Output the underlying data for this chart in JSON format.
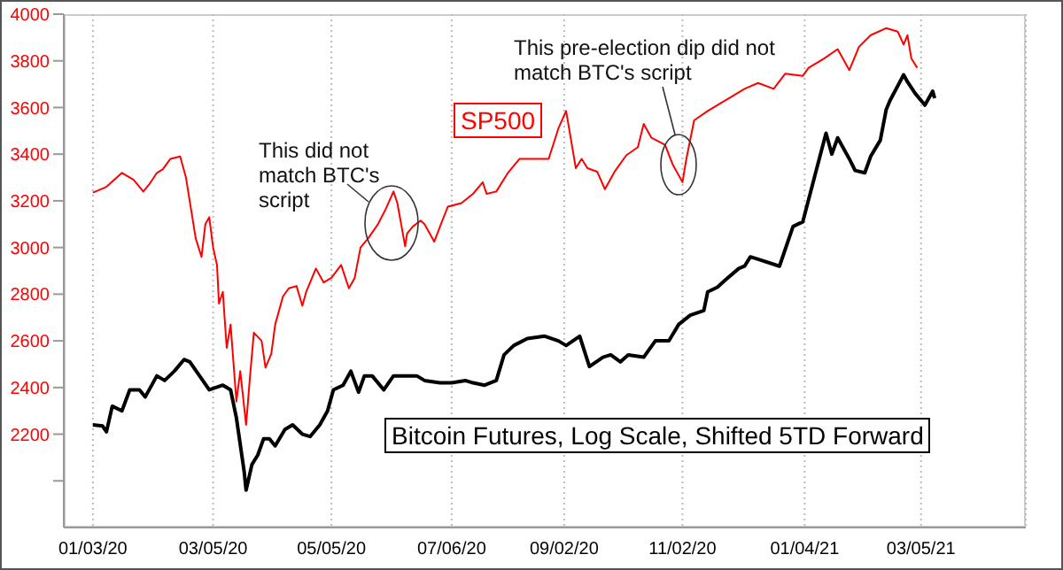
{
  "chart_data": {
    "type": "line",
    "xlim": [
      "2019-12-19",
      "2021-04-28"
    ],
    "xticks": [
      {
        "value": "2020-01-03",
        "label": "01/03/20"
      },
      {
        "value": "2020-03-05",
        "label": "03/05/20"
      },
      {
        "value": "2020-05-05",
        "label": "05/05/20"
      },
      {
        "value": "2020-07-06",
        "label": "07/06/20"
      },
      {
        "value": "2020-09-02",
        "label": "09/02/20"
      },
      {
        "value": "2020-11-02",
        "label": "11/02/20"
      },
      {
        "value": "2021-01-04",
        "label": "01/04/21"
      },
      {
        "value": "2021-03-05",
        "label": "03/05/21"
      }
    ],
    "ylim": [
      1800,
      4000
    ],
    "yticks": [
      {
        "value": 2000,
        "label": null
      },
      2200,
      2400,
      2600,
      2800,
      3000,
      3200,
      3400,
      3600,
      3800,
      4000
    ],
    "grid": "x",
    "annotations": [
      "This did not match BTC's script",
      "This pre-election dip did not match BTC's script"
    ],
    "series": [
      {
        "name": "SP500",
        "color": "#ff0000",
        "x": [
          "2020-01-03",
          "2020-01-10",
          "2020-01-18",
          "2020-01-24",
          "2020-01-29",
          "2020-02-01",
          "2020-02-05",
          "2020-02-08",
          "2020-02-12",
          "2020-02-17",
          "2020-02-20",
          "2020-02-25",
          "2020-02-28",
          "2020-03-01",
          "2020-03-03",
          "2020-03-05",
          "2020-03-07",
          "2020-03-08",
          "2020-03-10",
          "2020-03-12",
          "2020-03-14",
          "2020-03-17",
          "2020-03-19",
          "2020-03-22",
          "2020-03-24",
          "2020-03-26",
          "2020-03-30",
          "2020-04-01",
          "2020-04-04",
          "2020-04-06",
          "2020-04-10",
          "2020-04-13",
          "2020-04-17",
          "2020-04-20",
          "2020-04-22",
          "2020-04-27",
          "2020-05-01",
          "2020-05-05",
          "2020-05-10",
          "2020-05-14",
          "2020-05-17",
          "2020-05-20",
          "2020-05-24",
          "2020-05-29",
          "2020-06-02",
          "2020-06-06",
          "2020-06-08",
          "2020-06-12",
          "2020-06-13",
          "2020-06-16",
          "2020-06-20",
          "2020-06-22",
          "2020-06-27",
          "2020-06-30",
          "2020-07-04",
          "2020-07-11",
          "2020-07-17",
          "2020-07-22",
          "2020-07-24",
          "2020-07-29",
          "2020-08-04",
          "2020-08-10",
          "2020-08-16",
          "2020-08-25",
          "2020-08-30",
          "2020-09-03",
          "2020-09-08",
          "2020-09-11",
          "2020-09-14",
          "2020-09-19",
          "2020-09-23",
          "2020-09-28",
          "2020-10-04",
          "2020-10-10",
          "2020-10-13",
          "2020-10-17",
          "2020-10-24",
          "2020-10-28",
          "2020-11-02",
          "2020-11-04",
          "2020-11-08",
          "2020-11-15",
          "2020-11-22",
          "2020-11-27",
          "2020-12-04",
          "2020-12-11",
          "2020-12-19",
          "2020-12-25",
          "2021-01-03",
          "2021-01-06",
          "2021-01-14",
          "2021-01-21",
          "2021-01-27",
          "2021-02-01",
          "2021-02-07",
          "2021-02-15",
          "2021-02-21",
          "2021-02-24",
          "2021-02-26",
          "2021-02-28",
          "2021-03-03"
        ],
        "values": [
          3235,
          3260,
          3320,
          3290,
          3240,
          3270,
          3320,
          3335,
          3380,
          3390,
          3300,
          3040,
          2960,
          3100,
          3130,
          3000,
          2925,
          2760,
          2810,
          2570,
          2670,
          2340,
          2470,
          2240,
          2445,
          2635,
          2600,
          2485,
          2545,
          2670,
          2790,
          2825,
          2835,
          2750,
          2810,
          2910,
          2850,
          2870,
          2925,
          2825,
          2870,
          3000,
          3040,
          3100,
          3165,
          3240,
          3190,
          3005,
          3060,
          3090,
          3115,
          3100,
          3025,
          3090,
          3175,
          3190,
          3230,
          3280,
          3230,
          3240,
          3320,
          3380,
          3380,
          3380,
          3510,
          3585,
          3340,
          3380,
          3340,
          3325,
          3250,
          3325,
          3395,
          3430,
          3530,
          3470,
          3440,
          3355,
          3280,
          3380,
          3545,
          3585,
          3620,
          3645,
          3680,
          3705,
          3680,
          3745,
          3735,
          3770,
          3810,
          3850,
          3760,
          3860,
          3910,
          3940,
          3925,
          3870,
          3910,
          3810,
          3770
        ]
      },
      {
        "name": "Bitcoin Futures, Log Scale, Shifted 5TD Forward",
        "color": "#000000",
        "x": [
          "2020-01-03",
          "2020-01-08",
          "2020-01-10",
          "2020-01-13",
          "2020-01-18",
          "2020-01-22",
          "2020-01-27",
          "2020-01-30",
          "2020-02-05",
          "2020-02-09",
          "2020-02-14",
          "2020-02-19",
          "2020-02-22",
          "2020-02-27",
          "2020-03-03",
          "2020-03-10",
          "2020-03-14",
          "2020-03-17",
          "2020-03-21",
          "2020-03-22",
          "2020-03-25",
          "2020-03-28",
          "2020-03-31",
          "2020-04-03",
          "2020-04-06",
          "2020-04-11",
          "2020-04-15",
          "2020-04-20",
          "2020-04-24",
          "2020-04-29",
          "2020-05-03",
          "2020-05-06",
          "2020-05-11",
          "2020-05-15",
          "2020-05-19",
          "2020-05-22",
          "2020-05-26",
          "2020-06-01",
          "2020-06-06",
          "2020-06-12",
          "2020-06-18",
          "2020-06-22",
          "2020-06-30",
          "2020-07-06",
          "2020-07-13",
          "2020-07-17",
          "2020-07-23",
          "2020-07-29",
          "2020-08-02",
          "2020-08-07",
          "2020-08-14",
          "2020-08-23",
          "2020-08-30",
          "2020-09-03",
          "2020-09-10",
          "2020-09-15",
          "2020-09-22",
          "2020-09-26",
          "2020-10-01",
          "2020-10-05",
          "2020-10-13",
          "2020-10-19",
          "2020-10-26",
          "2020-10-31",
          "2020-11-06",
          "2020-11-13",
          "2020-11-15",
          "2020-11-20",
          "2020-11-24",
          "2020-12-01",
          "2020-12-04",
          "2020-12-07",
          "2020-12-11",
          "2020-12-22",
          "2020-12-29",
          "2021-01-03",
          "2021-01-09",
          "2021-01-15",
          "2021-01-18",
          "2021-01-21",
          "2021-01-27",
          "2021-01-30",
          "2021-02-04",
          "2021-02-07",
          "2021-02-12",
          "2021-02-15",
          "2021-02-17",
          "2021-02-24",
          "2021-02-26",
          "2021-03-02",
          "2021-03-07",
          "2021-03-11",
          "2021-03-12"
        ],
        "values": [
          2240,
          2235,
          2210,
          2320,
          2300,
          2390,
          2390,
          2360,
          2450,
          2430,
          2470,
          2520,
          2510,
          2450,
          2390,
          2410,
          2390,
          2270,
          2040,
          1960,
          2070,
          2110,
          2180,
          2180,
          2150,
          2220,
          2240,
          2200,
          2190,
          2240,
          2300,
          2390,
          2410,
          2470,
          2380,
          2450,
          2450,
          2390,
          2450,
          2450,
          2450,
          2430,
          2420,
          2420,
          2430,
          2420,
          2410,
          2430,
          2540,
          2580,
          2610,
          2620,
          2600,
          2580,
          2620,
          2490,
          2530,
          2540,
          2510,
          2540,
          2530,
          2600,
          2600,
          2670,
          2710,
          2730,
          2810,
          2830,
          2860,
          2910,
          2920,
          2960,
          2950,
          2920,
          3090,
          3110,
          3300,
          3490,
          3400,
          3470,
          3380,
          3330,
          3320,
          3390,
          3460,
          3590,
          3630,
          3740,
          3710,
          3660,
          3610,
          3670,
          3640
        ]
      }
    ]
  }
}
